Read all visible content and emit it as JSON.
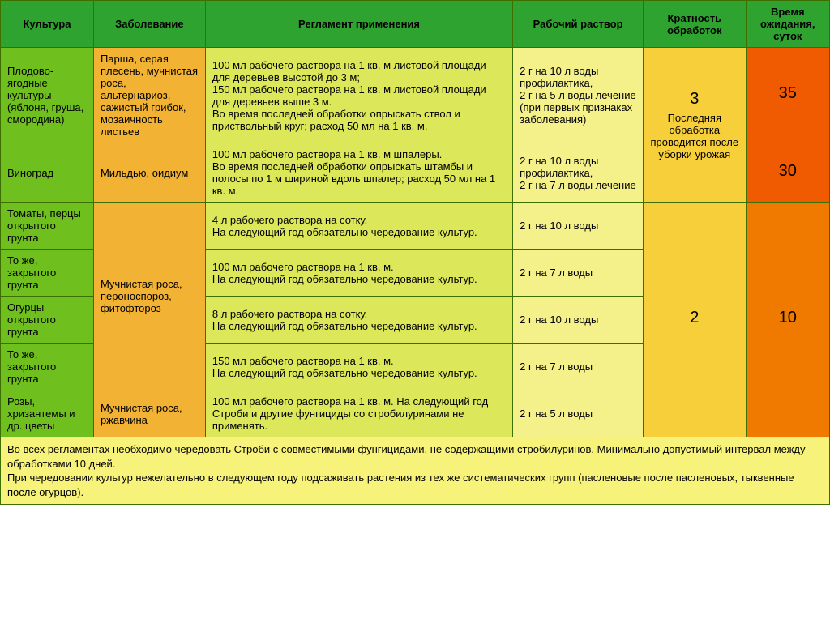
{
  "colors": {
    "header_bg": "#2fa32f",
    "header_text": "#000000",
    "culture_bg": "#6fbf1f",
    "disease_bg": "#f2b233",
    "regimen_bg": "#dce85a",
    "solution_bg": "#f4f08a",
    "freq_bg": "#f7cf3a",
    "wait_bg_1": "#f05a00",
    "wait_bg_2": "#f07a00",
    "footer_bg": "#f7f27a",
    "border": "#3d6e00"
  },
  "headers": {
    "culture": "Культура",
    "disease": "Заболевание",
    "regimen": "Регламент применения",
    "solution": "Рабочий раствор",
    "freq": "Кратность обработок",
    "wait": "Время ожидания, суток"
  },
  "rows": {
    "r1": {
      "culture": "Плодово-ягодные культуры (яблоня, груша, смородина)",
      "disease": "Парша, серая плесень, мучнистая роса, альтернариоз, сажистый грибок, мозаичность листьев",
      "regimen": "100 мл рабочего раствора на 1 кв. м листовой площади для деревьев высотой до 3 м;\n150 мл рабочего раствора на 1 кв. м листовой площади для деревьев выше 3 м.\nВо время последней обработки опрыскать ствол и приствольный круг; расход 50 мл на 1 кв. м.",
      "solution": "2 г на 10 л воды профилактика,\n2 г на 5 л воды лечение (при первых признаках заболевания)",
      "wait": "35"
    },
    "r2": {
      "culture": "Виноград",
      "disease": "Мильдью, оидиум",
      "regimen": "100 мл рабочего раствора на 1 кв. м шпалеры.\nВо время последней обработки опрыскать штамбы и полосы по 1 м шириной вдоль шпалер; расход 50 мл на 1 кв. м.",
      "solution": "2 г на 10 л воды профилактика,\n2 г на 7 л воды лечение",
      "wait": "30"
    },
    "freq_top_num": "3",
    "freq_top_text": "Последняя обработка проводится после уборки урожая",
    "r3": {
      "culture": "Томаты, перцы открытого грунта",
      "regimen": "4 л рабочего раствора на сотку.\nНа следующий год обязательно чередование культур.",
      "solution": "2 г на 10 л воды"
    },
    "r4": {
      "culture": "То же, закрытого грунта",
      "regimen": "100 мл рабочего раствора на 1 кв. м.\nНа следующий год обязательно чередование культур.",
      "solution": "2 г на 7 л воды"
    },
    "r5": {
      "culture": "Огурцы открытого грунта",
      "regimen": "8 л рабочего раствора на сотку.\nНа следующий год обязательно чередование культур.",
      "solution": "2 г на 10 л воды"
    },
    "r6": {
      "culture": "То же, закрытого грунта",
      "regimen": "150 мл рабочего раствора на 1 кв. м.\nНа следующий год обязательно чередование культур.",
      "solution": "2 г на 7 л воды"
    },
    "disease_mid": "Мучнистая роса, пероноспороз, фитофтороз",
    "r7": {
      "culture": "Розы, хризантемы и др. цветы",
      "disease": "Мучнистая роса, ржавчина",
      "regimen": "100 мл рабочего раствора на 1 кв. м. На следующий год Строби и другие фунгициды со стробилуринами не применять.",
      "solution": "2 г на 5 л воды"
    },
    "freq_bot": "2",
    "wait_bot": "10"
  },
  "footer": "Во всех регламентах необходимо чередовать Строби с совместимыми фунгицидами, не содержащими стробилуринов. Минимально допустимый интервал между обработками 10 дней.\nПри чередовании культур нежелательно в следующем году подсаживать растения из тех же систематических групп (пасленовые после пасленовых, тыквенные после огурцов)."
}
